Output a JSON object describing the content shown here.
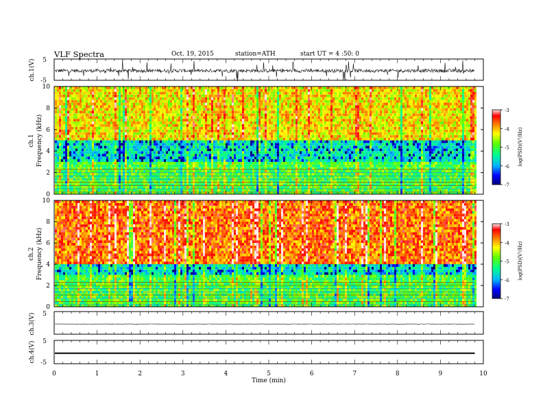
{
  "header": {
    "title": "VLF  Spectra",
    "date": "Oct. 19, 2015",
    "station": "station=ATH",
    "start": "start  UT  =   4  :50: 0"
  },
  "chart_data": [
    {
      "panel": "ch1-waveform",
      "type": "line",
      "ylabel": "ch.1(V)",
      "ylim": [
        -5,
        5
      ],
      "yticks": [
        "5",
        "-5"
      ],
      "series": [
        {
          "mean": -0.5,
          "amplitude": 0.8,
          "spikes_to": 5
        }
      ]
    },
    {
      "panel": "ch1-spectrogram",
      "type": "heatmap",
      "ylabel": "Frequency  (kHz)",
      "channel_label": "ch.1",
      "ylim": [
        0,
        10
      ],
      "yticks": [
        "0",
        "2",
        "4",
        "6",
        "8",
        "10"
      ],
      "levels": {
        "upper_band": -4.2,
        "middle_band": -5.6,
        "low_band": -5.0,
        "dark_gap_khz": [
          3,
          5
        ]
      },
      "colorbar": {
        "label": "log(PSD)(V²/Hz)",
        "range": [
          -7,
          -3
        ],
        "ticks": [
          "-3",
          "-4",
          "-5",
          "-6",
          "-7"
        ]
      }
    },
    {
      "panel": "ch2-spectrogram",
      "type": "heatmap",
      "ylabel": "Frequency  (kHz)",
      "channel_label": "ch.2",
      "ylim": [
        0,
        10
      ],
      "yticks": [
        "0",
        "2",
        "4",
        "6",
        "8",
        "10"
      ],
      "levels": {
        "upper_band": -3.7,
        "middle_band": -5.6,
        "low_band": -5.0,
        "dark_gap_khz": [
          3,
          4
        ]
      },
      "colorbar": {
        "label": "log(PSD)(V²/Hz)",
        "range": [
          -7,
          -3
        ],
        "ticks": [
          "-3",
          "-4",
          "-5",
          "-6",
          "-7"
        ]
      }
    },
    {
      "panel": "ch3-waveform",
      "type": "line",
      "ylabel": "ch.3(V)",
      "ylim": [
        -5,
        5
      ],
      "yticks": [
        "5"
      ],
      "series": [
        {
          "mean": -0.5,
          "amplitude": 0.05
        }
      ]
    },
    {
      "panel": "ch4-waveform",
      "type": "line",
      "ylabel": "ch.4(V)",
      "ylim": [
        -5,
        5
      ],
      "yticks": [
        "5",
        "-5"
      ],
      "series": [
        {
          "mean": -0.5,
          "amplitude": 0.3
        }
      ]
    },
    {
      "panel": "time-axis",
      "xlabel": "Time  (min)",
      "xlim": [
        0,
        10
      ],
      "xticks": [
        "0",
        "1",
        "2",
        "3",
        "4",
        "5",
        "6",
        "7",
        "8",
        "9",
        "10"
      ],
      "data_end_min": 9.8
    }
  ]
}
